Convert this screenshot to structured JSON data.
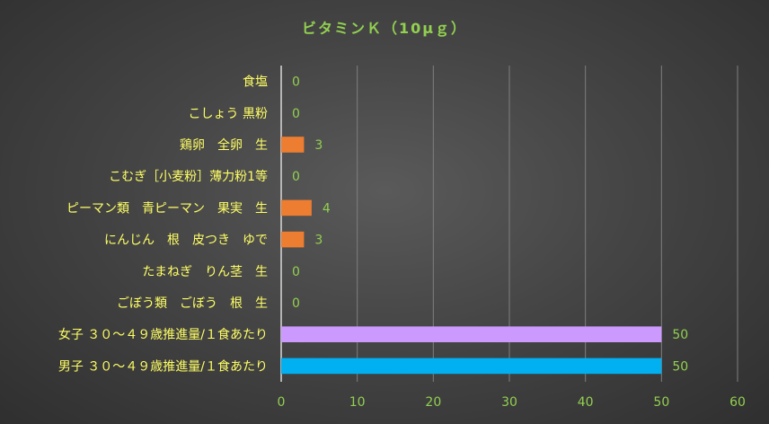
{
  "chart_data": {
    "type": "bar",
    "orientation": "horizontal",
    "title": "ビタミンＫ（10μｇ）",
    "categories": [
      "食塩",
      "こしょう 黒粉",
      "鶏卵　全卵　生",
      "こむぎ［小麦粉］薄力粉1等",
      "ピーマン類　青ピーマン　果実　生",
      "にんじん　根　皮つき　ゆで",
      "たまねぎ　りん茎　生",
      "ごぼう類　ごぼう　根　生",
      "女子 ３０～４９歳推進量/１食あたり",
      "男子 ３０～４９歳推進量/１食あたり"
    ],
    "values": [
      0,
      0,
      3,
      0,
      4,
      3,
      0,
      0,
      50,
      50
    ],
    "bar_colors": [
      "#ed7d31",
      "#ed7d31",
      "#ed7d31",
      "#ed7d31",
      "#ed7d31",
      "#ed7d31",
      "#ed7d31",
      "#ed7d31",
      "#cc99ff",
      "#00b0f0"
    ],
    "xlim": [
      0,
      60
    ],
    "xticks": [
      0,
      10,
      20,
      30,
      40,
      50,
      60
    ],
    "grid": true,
    "legend": "none",
    "colors": {
      "title": "#92d050",
      "category_labels": "#ffff66",
      "value_labels": "#92d050",
      "gridlines": "#7f7f7f"
    }
  }
}
